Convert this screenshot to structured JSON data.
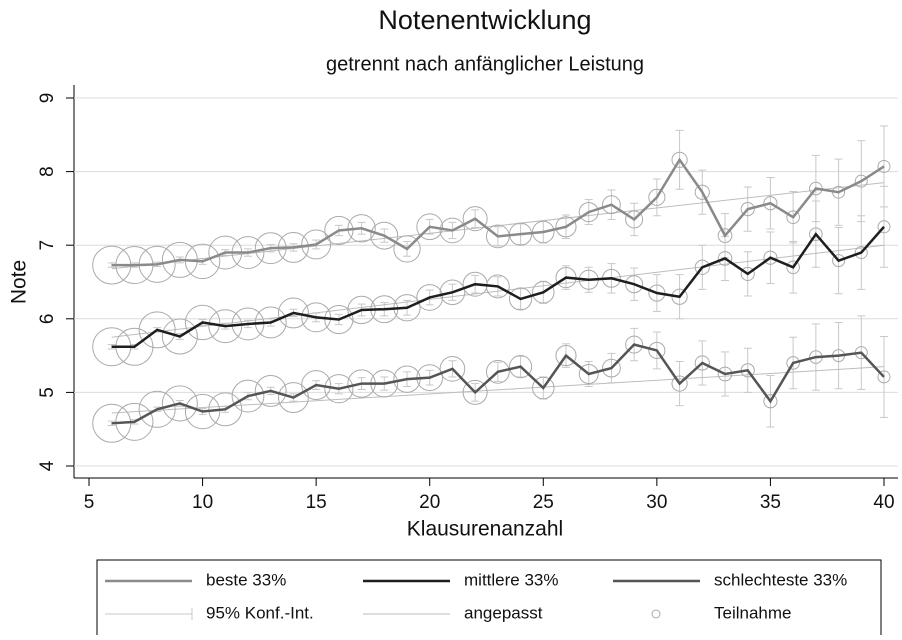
{
  "chart_data": {
    "type": "line",
    "title": "Notenentwicklung",
    "subtitle": "getrennt nach anfänglicher Leistung",
    "x_label": "Klausurenanzahl",
    "y_label": "Note",
    "x": [
      6,
      7,
      8,
      9,
      10,
      11,
      12,
      13,
      14,
      15,
      16,
      17,
      18,
      19,
      20,
      21,
      22,
      23,
      24,
      25,
      26,
      27,
      28,
      29,
      30,
      31,
      32,
      33,
      34,
      35,
      36,
      37,
      38,
      39,
      40
    ],
    "xlim": [
      5,
      40
    ],
    "xticks": [
      5,
      10,
      15,
      20,
      25,
      30,
      35,
      40
    ],
    "ylim": [
      4,
      9
    ],
    "yticks": [
      4,
      5,
      6,
      7,
      8,
      9
    ],
    "grid": true,
    "fit_x": [
      6,
      40
    ],
    "participation": [
      100,
      95,
      90,
      85,
      82,
      75,
      70,
      66,
      62,
      58,
      55,
      52,
      50,
      48,
      46,
      42,
      40,
      36,
      34,
      32,
      28,
      25,
      22,
      20,
      18,
      16,
      14,
      13,
      12,
      12,
      11,
      11,
      10,
      10,
      10
    ],
    "series": [
      {
        "name": "beste 33%",
        "color": "#8a8a8a",
        "values": [
          6.73,
          6.73,
          6.74,
          6.8,
          6.78,
          6.9,
          6.9,
          6.96,
          6.97,
          7.01,
          7.2,
          7.23,
          7.13,
          6.95,
          7.25,
          7.2,
          7.36,
          7.12,
          7.15,
          7.18,
          7.25,
          7.45,
          7.55,
          7.35,
          7.65,
          8.16,
          7.72,
          7.13,
          7.49,
          7.57,
          7.38,
          7.77,
          7.72,
          7.87,
          8.07
        ],
        "ci": [
          0.03,
          0.03,
          0.03,
          0.04,
          0.04,
          0.04,
          0.05,
          0.05,
          0.05,
          0.06,
          0.07,
          0.08,
          0.09,
          0.1,
          0.1,
          0.11,
          0.12,
          0.13,
          0.14,
          0.15,
          0.16,
          0.17,
          0.2,
          0.22,
          0.25,
          0.4,
          0.3,
          0.3,
          0.3,
          0.35,
          0.35,
          0.45,
          0.45,
          0.55,
          0.55
        ],
        "fit": [
          6.68,
          7.85
        ]
      },
      {
        "name": "mittlere 33%",
        "color": "#1e1e1e",
        "values": [
          5.62,
          5.62,
          5.85,
          5.76,
          5.95,
          5.9,
          5.93,
          5.95,
          6.08,
          6.02,
          5.99,
          6.12,
          6.13,
          6.15,
          6.29,
          6.36,
          6.47,
          6.44,
          6.27,
          6.36,
          6.56,
          6.53,
          6.55,
          6.47,
          6.35,
          6.3,
          6.7,
          6.82,
          6.61,
          6.83,
          6.7,
          7.15,
          6.79,
          6.9,
          7.25
        ],
        "ci": [
          0.03,
          0.03,
          0.03,
          0.04,
          0.04,
          0.04,
          0.05,
          0.05,
          0.05,
          0.06,
          0.07,
          0.08,
          0.09,
          0.1,
          0.1,
          0.11,
          0.12,
          0.13,
          0.14,
          0.15,
          0.16,
          0.17,
          0.2,
          0.22,
          0.25,
          0.3,
          0.3,
          0.3,
          0.3,
          0.35,
          0.35,
          0.45,
          0.45,
          0.5,
          0.55
        ],
        "fit": [
          5.75,
          7.0
        ]
      },
      {
        "name": "schlechteste 33%",
        "color": "#555555",
        "values": [
          4.58,
          4.6,
          4.77,
          4.85,
          4.74,
          4.77,
          4.95,
          5.02,
          4.93,
          5.1,
          5.05,
          5.12,
          5.12,
          5.18,
          5.2,
          5.32,
          5.0,
          5.28,
          5.35,
          5.06,
          5.5,
          5.25,
          5.33,
          5.65,
          5.57,
          5.12,
          5.4,
          5.25,
          5.3,
          4.88,
          5.4,
          5.48,
          5.5,
          5.54,
          5.21
        ],
        "ci": [
          0.03,
          0.03,
          0.03,
          0.04,
          0.04,
          0.04,
          0.05,
          0.05,
          0.05,
          0.06,
          0.07,
          0.08,
          0.09,
          0.1,
          0.1,
          0.11,
          0.12,
          0.13,
          0.14,
          0.15,
          0.16,
          0.17,
          0.2,
          0.22,
          0.25,
          0.3,
          0.3,
          0.3,
          0.3,
          0.35,
          0.35,
          0.45,
          0.45,
          0.5,
          0.55
        ],
        "fit": [
          4.72,
          5.35
        ]
      }
    ],
    "legend_extra": [
      "95% Konf.-Int.",
      "angepasst",
      "Teilnahme"
    ]
  }
}
